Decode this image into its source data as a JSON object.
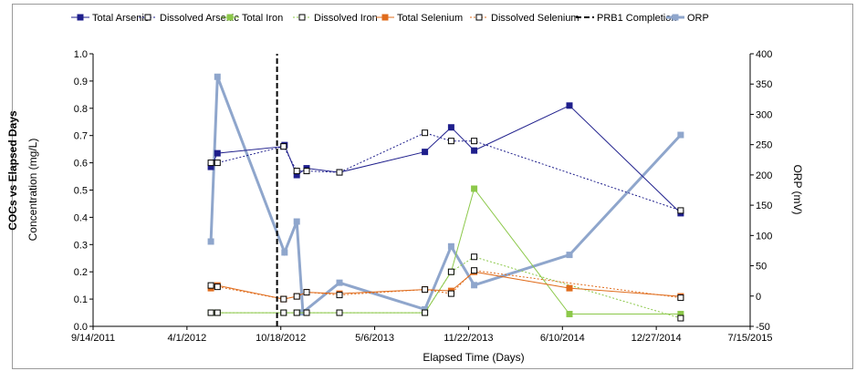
{
  "side_title": "COCs vs Elapsed Days",
  "chart_data": {
    "type": "line",
    "title": "",
    "xlabel": "Elapsed Time (Days)",
    "ylabel": "Concentration (mg/L)",
    "y2label": "ORP (mV)",
    "x_type": "date",
    "xlim": [
      "2011-09-14",
      "2015-07-15"
    ],
    "x_ticks": [
      "9/14/2011",
      "4/1/2012",
      "10/18/2012",
      "5/6/2013",
      "11/22/2013",
      "6/10/2014",
      "12/27/2014",
      "7/15/2015"
    ],
    "ylim": [
      0,
      1.0
    ],
    "y_ticks": [
      "0.0",
      "0.1",
      "0.2",
      "0.3",
      "0.4",
      "0.5",
      "0.6",
      "0.7",
      "0.8",
      "0.9",
      "1.0"
    ],
    "y2lim": [
      -50,
      400
    ],
    "y2_ticks": [
      "-50",
      "0",
      "50",
      "100",
      "150",
      "200",
      "250",
      "300",
      "350",
      "400"
    ],
    "legend_position": "top",
    "grid": false,
    "series": [
      {
        "name": "Total Arsenic",
        "axis": "left",
        "color": "#1f1f8c",
        "style": "solid",
        "marker": "filled-square",
        "points": [
          [
            "2012-05-22",
            0.585
          ],
          [
            "2012-06-05",
            0.635
          ],
          [
            "2012-10-24",
            0.66
          ],
          [
            "2012-10-26",
            0.665
          ],
          [
            "2012-11-21",
            0.555
          ],
          [
            "2012-12-12",
            0.58
          ],
          [
            "2013-02-20",
            0.565
          ],
          [
            "2013-08-21",
            0.64
          ],
          [
            "2013-10-16",
            0.73
          ],
          [
            "2013-12-04",
            0.645
          ],
          [
            "2014-06-25",
            0.81
          ],
          [
            "2015-02-17",
            0.415
          ]
        ]
      },
      {
        "name": "Dissolved Arsenic",
        "axis": "left",
        "color": "#1f1f8c",
        "style": "dotted",
        "marker": "open-square",
        "points": [
          [
            "2012-05-22",
            0.6
          ],
          [
            "2012-06-05",
            0.6
          ],
          [
            "2012-10-24",
            0.66
          ],
          [
            "2012-11-21",
            0.57
          ],
          [
            "2012-12-12",
            0.57
          ],
          [
            "2013-02-20",
            0.565
          ],
          [
            "2013-08-21",
            0.71
          ],
          [
            "2013-10-16",
            0.68
          ],
          [
            "2013-12-04",
            0.68
          ],
          [
            "2015-02-17",
            0.425
          ]
        ]
      },
      {
        "name": "Total Iron",
        "axis": "left",
        "color": "#8cc84a",
        "style": "solid",
        "marker": "filled-square",
        "points": [
          [
            "2012-05-22",
            0.05
          ],
          [
            "2012-06-05",
            0.05
          ],
          [
            "2012-10-24",
            0.05
          ],
          [
            "2012-11-21",
            0.05
          ],
          [
            "2012-12-12",
            0.05
          ],
          [
            "2013-02-20",
            0.05
          ],
          [
            "2013-08-21",
            0.05
          ],
          [
            "2013-10-16",
            0.2
          ],
          [
            "2013-12-04",
            0.505
          ],
          [
            "2014-06-25",
            0.045
          ],
          [
            "2015-02-17",
            0.045
          ]
        ]
      },
      {
        "name": "Dissolved Iron",
        "axis": "left",
        "color": "#8cc84a",
        "style": "dotted",
        "marker": "open-square",
        "points": [
          [
            "2012-05-22",
            0.05
          ],
          [
            "2012-06-05",
            0.05
          ],
          [
            "2012-10-24",
            0.05
          ],
          [
            "2012-11-21",
            0.05
          ],
          [
            "2012-12-12",
            0.05
          ],
          [
            "2013-02-20",
            0.05
          ],
          [
            "2013-08-21",
            0.05
          ],
          [
            "2013-10-16",
            0.2
          ],
          [
            "2013-12-04",
            0.255
          ],
          [
            "2015-02-17",
            0.03
          ]
        ]
      },
      {
        "name": "Total Selenium",
        "axis": "left",
        "color": "#e06c1c",
        "style": "solid",
        "marker": "filled-square",
        "points": [
          [
            "2012-05-22",
            0.14
          ],
          [
            "2012-06-05",
            0.15
          ],
          [
            "2012-10-24",
            0.1
          ],
          [
            "2012-11-21",
            0.11
          ],
          [
            "2012-12-12",
            0.125
          ],
          [
            "2013-02-20",
            0.12
          ],
          [
            "2013-08-21",
            0.135
          ],
          [
            "2013-10-16",
            0.13
          ],
          [
            "2013-12-04",
            0.2
          ],
          [
            "2014-06-25",
            0.14
          ],
          [
            "2015-02-17",
            0.11
          ]
        ]
      },
      {
        "name": "Dissolved Selenium",
        "axis": "left",
        "color": "#e06c1c",
        "style": "dotted",
        "marker": "open-square",
        "points": [
          [
            "2012-05-22",
            0.15
          ],
          [
            "2012-06-05",
            0.145
          ],
          [
            "2012-10-24",
            0.1
          ],
          [
            "2012-11-21",
            0.11
          ],
          [
            "2012-12-12",
            0.125
          ],
          [
            "2013-02-20",
            0.115
          ],
          [
            "2013-08-21",
            0.135
          ],
          [
            "2013-10-16",
            0.12
          ],
          [
            "2013-12-04",
            0.205
          ],
          [
            "2015-02-17",
            0.105
          ]
        ]
      },
      {
        "name": "PRB1 Completion",
        "axis": "left",
        "color": "#000000",
        "style": "dashed",
        "marker": "none",
        "points": [
          [
            "2012-10-10",
            0
          ],
          [
            "2012-10-10",
            1.0
          ]
        ]
      },
      {
        "name": "ORP",
        "axis": "right",
        "color": "#8fa6cc",
        "style": "thick",
        "marker": "filled-square",
        "points": [
          [
            "2012-05-22",
            90
          ],
          [
            "2012-06-05",
            362
          ],
          [
            "2012-10-26",
            72
          ],
          [
            "2012-11-21",
            123
          ],
          [
            "2012-12-04",
            -27
          ],
          [
            "2013-02-20",
            22
          ],
          [
            "2013-08-21",
            -22
          ],
          [
            "2013-10-16",
            82
          ],
          [
            "2013-12-04",
            18
          ],
          [
            "2014-06-25",
            68
          ],
          [
            "2015-02-17",
            266
          ]
        ]
      }
    ]
  }
}
